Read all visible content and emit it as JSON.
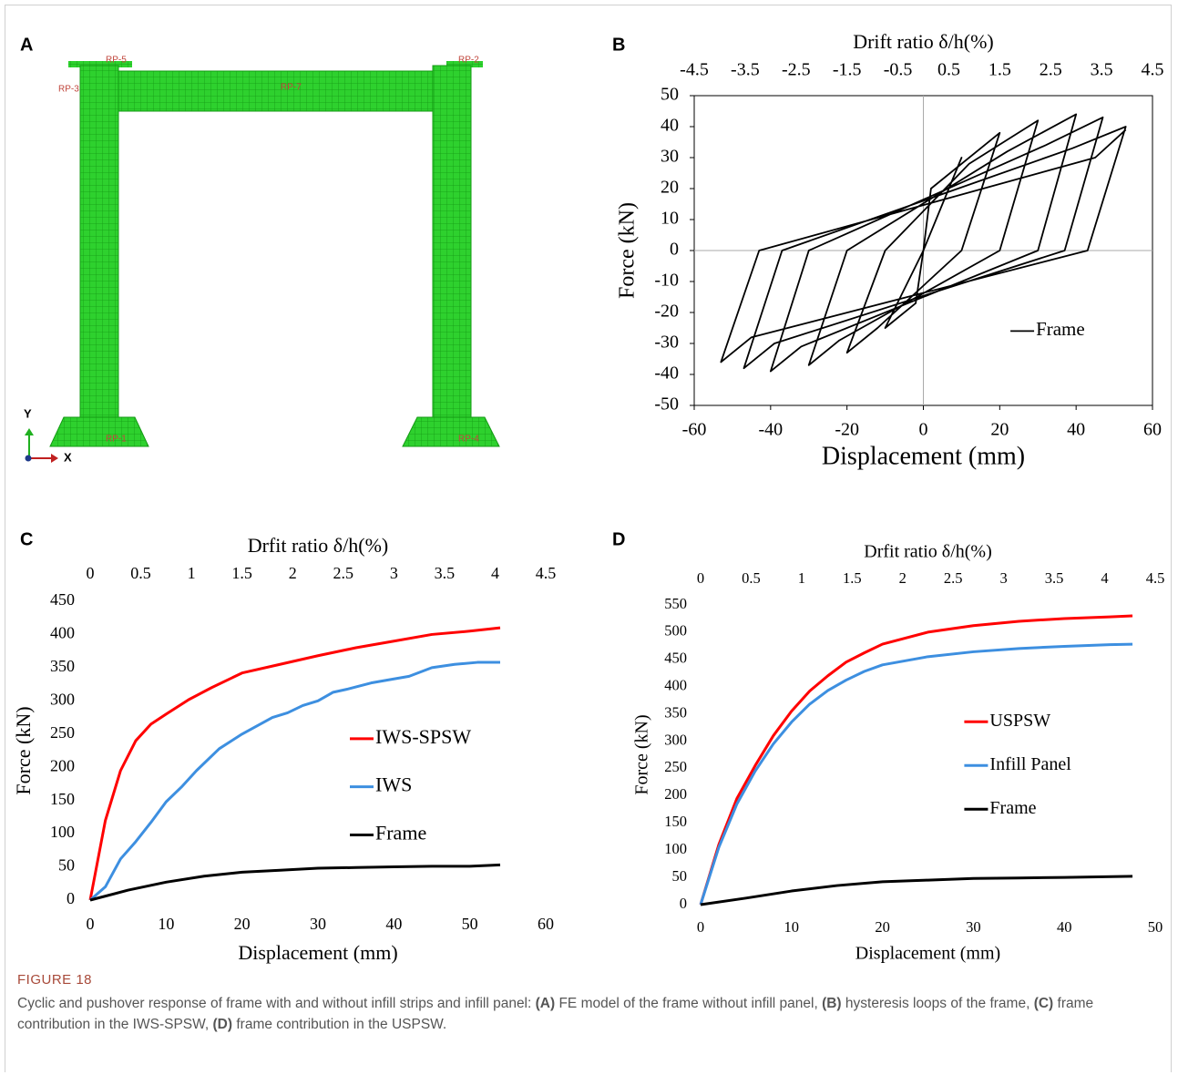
{
  "figure": {
    "label": "FIGURE 18",
    "caption": [
      "Cyclic and pushover response of frame with and without infill strips and infill panel: ",
      "(A)",
      " FE model of the frame without infill panel, ",
      "(B)",
      " hysteresis loops of the frame, ",
      "(C)",
      " frame contribution in the IWS-SPSW, ",
      "(D)",
      " frame contribution in the USPSW."
    ]
  },
  "fe_model": {
    "panel_label": "A",
    "labels": [
      "RP-5",
      "RP-2",
      "RP-3",
      "RP-7",
      "RP-1",
      "RP-4"
    ],
    "axis_labels": [
      "Y",
      "X"
    ]
  },
  "chart_data": [
    {
      "type": "line",
      "panel_label": "B",
      "x2label": "Drift ratio δ/h(%)",
      "xlabel": "Displacement (mm)",
      "ylabel": "Force (kN)",
      "xlim": [
        -60,
        60
      ],
      "xticks": [
        -60,
        -40,
        -20,
        0,
        20,
        40,
        60
      ],
      "x2lim": [
        -4.5,
        4.5
      ],
      "x2ticks": [
        -4.5,
        -3.5,
        -2.5,
        -1.5,
        -0.5,
        0.5,
        1.5,
        2.5,
        3.5,
        4.5
      ],
      "ylim": [
        -50,
        50
      ],
      "yticks": [
        -50,
        -40,
        -30,
        -20,
        -10,
        0,
        10,
        20,
        30,
        40,
        50
      ],
      "box": true,
      "zero_lines": true,
      "legend": "lower right",
      "series": [
        {
          "name": "Frame",
          "color": "#000000",
          "x": [
            0,
            10,
            0,
            -2,
            -10,
            0,
            2,
            20,
            10,
            -12,
            -20,
            -10,
            12,
            30,
            20,
            -22,
            -30,
            -20,
            22,
            40,
            30,
            -32,
            -40,
            -30,
            32,
            47,
            37,
            -39,
            -47,
            -37,
            39,
            53,
            43,
            -45,
            -53,
            -43,
            45,
            53
          ],
          "values": [
            0,
            30,
            0,
            -17,
            -25,
            0,
            20,
            38,
            0,
            -25,
            -33,
            0,
            28,
            42,
            0,
            -29,
            -37,
            0,
            32,
            44,
            0,
            -31,
            -39,
            0,
            34,
            43,
            0,
            -30,
            -38,
            0,
            33,
            40,
            0,
            -28,
            -36,
            0,
            30,
            39
          ]
        }
      ]
    },
    {
      "type": "line",
      "panel_label": "C",
      "x2label": "Drfit ratio δ/h(%)",
      "xlabel": "Displacement (mm)",
      "ylabel": "Force (kN)",
      "xlim": [
        0,
        60
      ],
      "xticks": [
        0,
        10,
        20,
        30,
        40,
        50,
        60
      ],
      "x2lim": [
        0,
        4.5
      ],
      "x2ticks": [
        0,
        0.5,
        1,
        1.5,
        2,
        2.5,
        3,
        3.5,
        4,
        4.5
      ],
      "ylim": [
        0,
        450
      ],
      "yticks": [
        0,
        50,
        100,
        150,
        200,
        250,
        300,
        350,
        400,
        450
      ],
      "box": false,
      "zero_lines": false,
      "legend": "center right",
      "series": [
        {
          "name": "IWS-SPSW",
          "color": "#ff0000",
          "x": [
            0,
            2,
            4,
            6,
            8,
            10,
            13,
            16,
            20,
            25,
            30,
            35,
            40,
            45,
            50,
            54
          ],
          "values": [
            0,
            120,
            195,
            240,
            265,
            280,
            302,
            320,
            342,
            355,
            368,
            380,
            390,
            400,
            405,
            410
          ]
        },
        {
          "name": "IWS",
          "color": "#3d8fe0",
          "x": [
            0,
            2,
            4,
            6,
            8,
            10,
            12,
            14,
            17,
            20,
            24,
            26,
            28,
            30,
            32,
            34,
            37,
            40,
            42,
            45,
            48,
            51,
            54
          ],
          "values": [
            0,
            20,
            62,
            88,
            117,
            148,
            170,
            195,
            228,
            250,
            275,
            282,
            293,
            300,
            313,
            318,
            327,
            333,
            337,
            350,
            355,
            358,
            358
          ]
        },
        {
          "name": "Frame",
          "color": "#000000",
          "x": [
            0,
            5,
            10,
            15,
            20,
            25,
            30,
            35,
            40,
            45,
            50,
            54
          ],
          "values": [
            0,
            15,
            27,
            36,
            42,
            45,
            48,
            49,
            50,
            51,
            51,
            53
          ]
        }
      ]
    },
    {
      "type": "line",
      "panel_label": "D",
      "x2label": "Drfit ratio δ/h(%)",
      "xlabel": "Displacement (mm)",
      "ylabel": "Force (kN)",
      "xlim": [
        0,
        50
      ],
      "xticks": [
        0,
        10,
        20,
        30,
        40,
        50
      ],
      "x2lim": [
        0,
        4.5
      ],
      "x2ticks": [
        0,
        0.5,
        1,
        1.5,
        2,
        2.5,
        3,
        3.5,
        4,
        4.5
      ],
      "ylim": [
        0,
        550
      ],
      "yticks": [
        0,
        50,
        100,
        150,
        200,
        250,
        300,
        350,
        400,
        450,
        500,
        550
      ],
      "box": false,
      "zero_lines": false,
      "legend": "center",
      "series": [
        {
          "name": "USPSW",
          "color": "#ff0000",
          "x": [
            0,
            2,
            4,
            6,
            8,
            10,
            12,
            14,
            16,
            18,
            20,
            25,
            30,
            35,
            40,
            45,
            47.5
          ],
          "values": [
            0,
            110,
            195,
            255,
            310,
            355,
            392,
            420,
            445,
            462,
            478,
            500,
            512,
            520,
            525,
            528,
            530
          ]
        },
        {
          "name": "Infill Panel",
          "color": "#3d8fe0",
          "x": [
            0,
            2,
            4,
            6,
            8,
            10,
            12,
            14,
            16,
            18,
            20,
            25,
            30,
            35,
            40,
            45,
            47.5
          ],
          "values": [
            0,
            105,
            185,
            245,
            295,
            335,
            368,
            393,
            412,
            428,
            440,
            455,
            464,
            470,
            474,
            477,
            478
          ]
        },
        {
          "name": "Frame",
          "color": "#000000",
          "x": [
            0,
            5,
            10,
            15,
            20,
            25,
            30,
            35,
            40,
            47.5
          ],
          "values": [
            0,
            12,
            25,
            35,
            42,
            45,
            48,
            49,
            50,
            52
          ]
        }
      ]
    }
  ]
}
